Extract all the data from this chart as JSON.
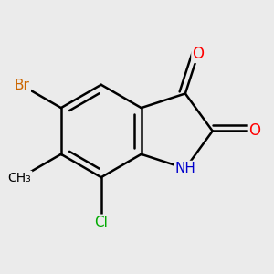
{
  "bg_color": "#ebebeb",
  "bond_color": "#000000",
  "bond_width": 1.8,
  "atom_colors": {
    "O": "#ff0000",
    "N": "#0000cc",
    "Br": "#cc6600",
    "Cl": "#00aa00",
    "C": "#000000"
  },
  "font_size": 11,
  "fig_size": [
    3.0,
    3.0
  ],
  "dpi": 100
}
